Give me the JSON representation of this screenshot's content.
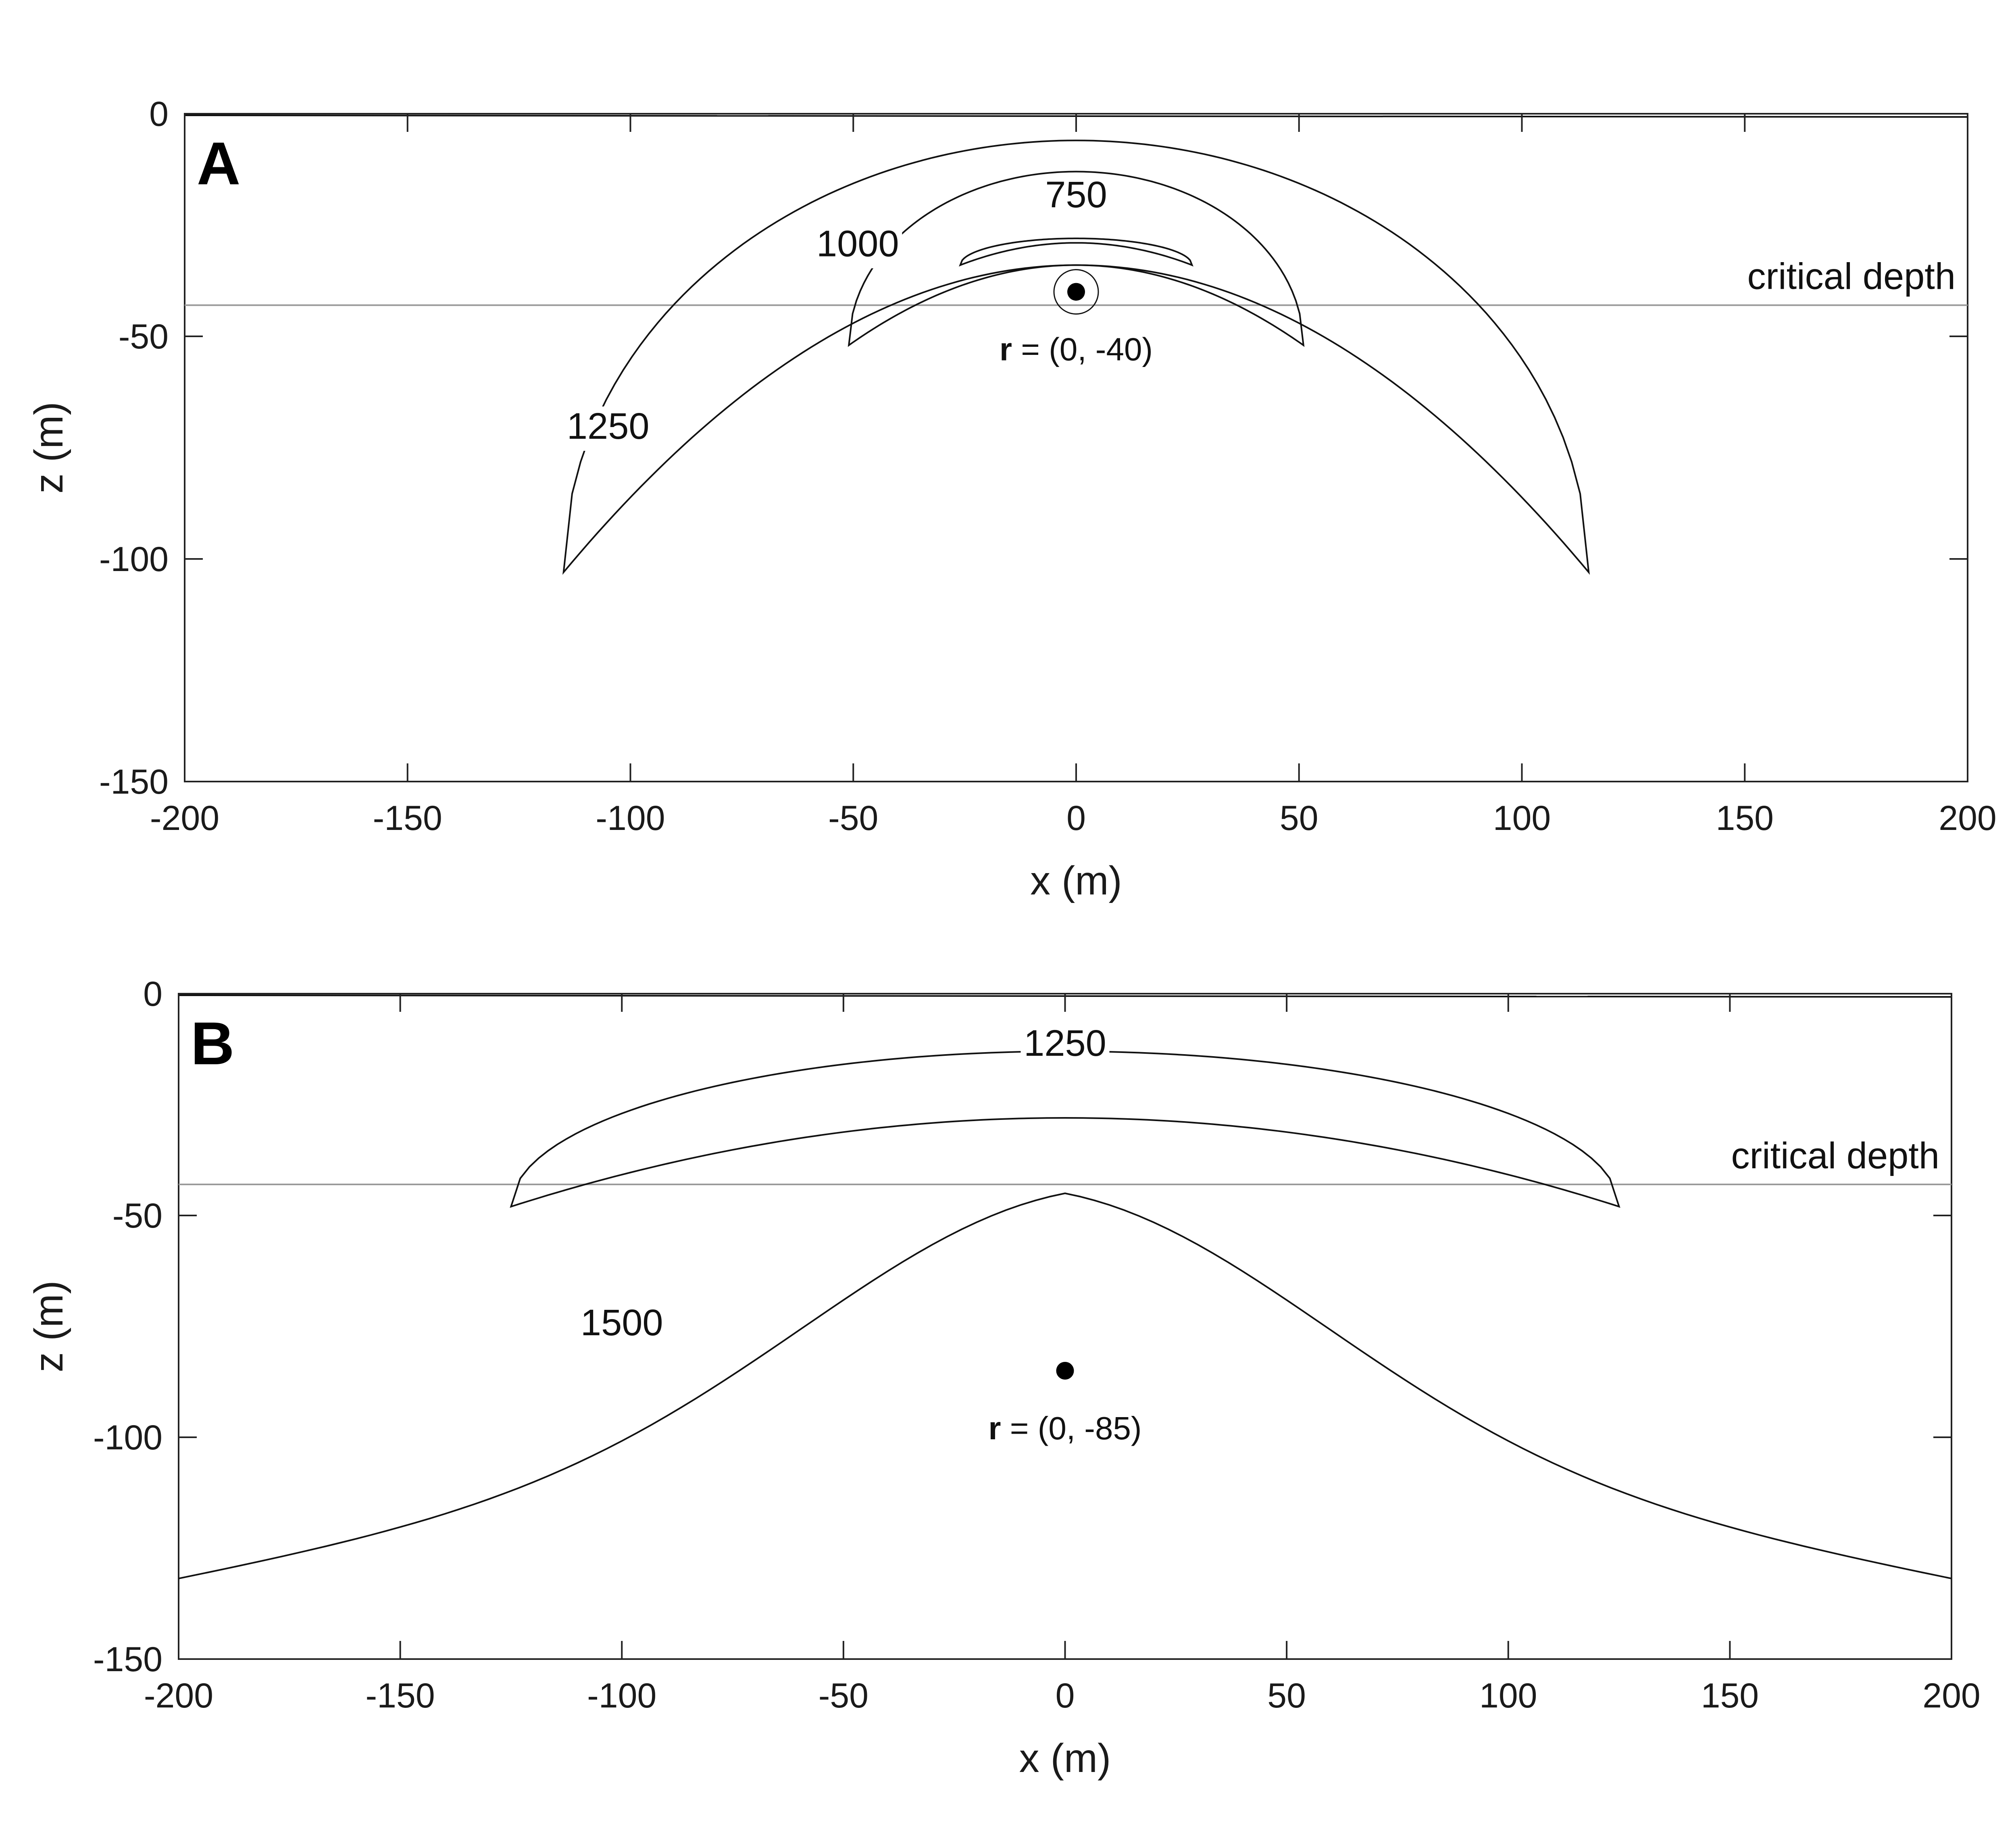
{
  "chart_data": [
    {
      "type": "contour",
      "panel_label": "A",
      "xlabel": "x (m)",
      "ylabel": "z (m)",
      "xlim": [
        -200,
        200
      ],
      "ylim": [
        -150,
        0
      ],
      "xticks": [
        "-200",
        "-150",
        "-100",
        "-50",
        "0",
        "50",
        "100",
        "150",
        "200"
      ],
      "yticks": [
        "0",
        "-50",
        "-100",
        "-150"
      ],
      "reference_line": {
        "label": "critical depth",
        "z": -43
      },
      "point": {
        "x": 0,
        "z": -40,
        "label_bold": "r",
        "label_rest": " = (0, -40)"
      },
      "contours": [
        {
          "level": "750",
          "label": "750",
          "half_width": 26,
          "top_z": -28,
          "lower_z": -29,
          "end_z": -34,
          "label_pos": [
            0,
            -21
          ]
        },
        {
          "level": "1000",
          "label": "1000",
          "half_width": 51,
          "top_z": -13,
          "lower_z": -34,
          "end_z": -52,
          "label_pos": [
            -49,
            -32
          ]
        },
        {
          "level": "1250",
          "label": "1250",
          "half_width": 115,
          "top_z": -6,
          "lower_z": -34,
          "end_z": -103,
          "label_pos": [
            -105,
            -73
          ]
        }
      ]
    },
    {
      "type": "contour",
      "panel_label": "B",
      "xlabel": "x (m)",
      "ylabel": "z (m)",
      "xlim": [
        -200,
        200
      ],
      "ylim": [
        -150,
        0
      ],
      "xticks": [
        "-200",
        "-150",
        "-100",
        "-50",
        "0",
        "50",
        "100",
        "150",
        "200"
      ],
      "yticks": [
        "0",
        "-50",
        "-100",
        "-150"
      ],
      "reference_line": {
        "label": "critical depth",
        "z": -43
      },
      "point": {
        "x": 0,
        "z": -85,
        "label_bold": "r",
        "label_rest": " = (0, -85)"
      },
      "contours": [
        {
          "level": "1250",
          "label": "1250",
          "half_width": 125,
          "top_z": -13,
          "lower_z": -28,
          "end_z": -48,
          "label_pos": [
            0,
            -14
          ]
        },
        {
          "level": "1500",
          "label": "1500",
          "half_width": 200,
          "peak_z": -45,
          "end_z": -132,
          "label_pos": [
            -100,
            -77
          ]
        }
      ]
    }
  ]
}
